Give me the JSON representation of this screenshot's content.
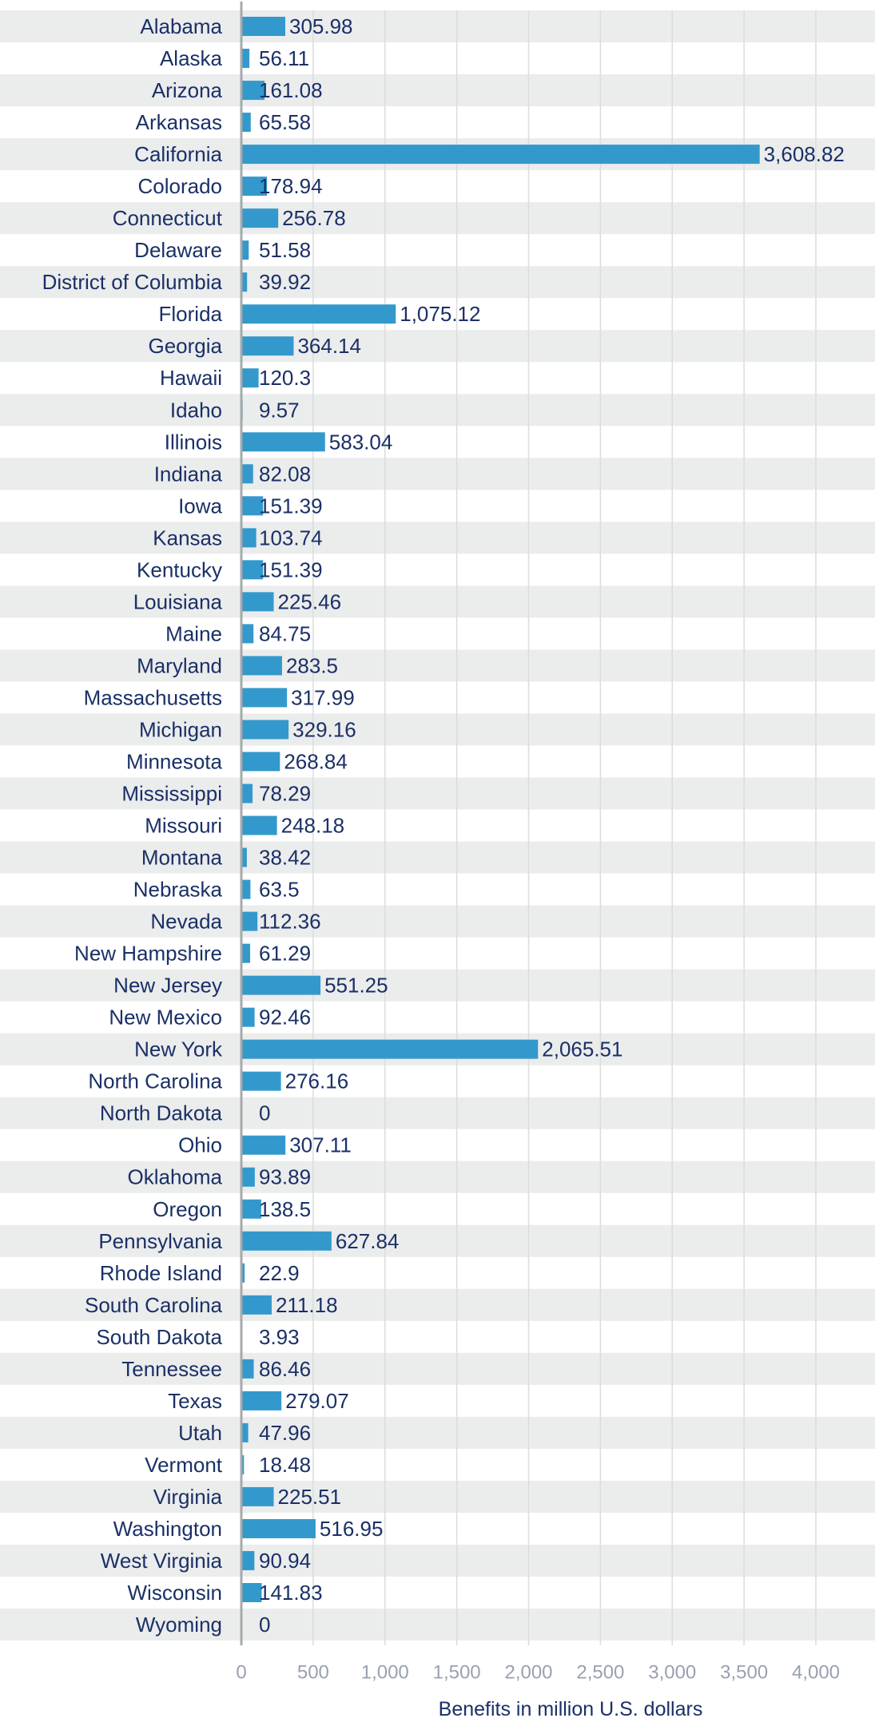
{
  "chart_data": {
    "type": "bar",
    "orientation": "horizontal",
    "categories": [
      "Alabama",
      "Alaska",
      "Arizona",
      "Arkansas",
      "California",
      "Colorado",
      "Connecticut",
      "Delaware",
      "District of Columbia",
      "Florida",
      "Georgia",
      "Hawaii",
      "Idaho",
      "Illinois",
      "Indiana",
      "Iowa",
      "Kansas",
      "Kentucky",
      "Louisiana",
      "Maine",
      "Maryland",
      "Massachusetts",
      "Michigan",
      "Minnesota",
      "Mississippi",
      "Missouri",
      "Montana",
      "Nebraska",
      "Nevada",
      "New Hampshire",
      "New Jersey",
      "New Mexico",
      "New York",
      "North Carolina",
      "North Dakota",
      "Ohio",
      "Oklahoma",
      "Oregon",
      "Pennsylvania",
      "Rhode Island",
      "South Carolina",
      "South Dakota",
      "Tennessee",
      "Texas",
      "Utah",
      "Vermont",
      "Virginia",
      "Washington",
      "West Virginia",
      "Wisconsin",
      "Wyoming"
    ],
    "values": [
      305.98,
      56.11,
      161.08,
      65.58,
      3608.82,
      178.94,
      256.78,
      51.58,
      39.92,
      1075.12,
      364.14,
      120.3,
      9.57,
      583.04,
      82.08,
      151.39,
      103.74,
      151.39,
      225.46,
      84.75,
      283.5,
      317.99,
      329.16,
      268.84,
      78.29,
      248.18,
      38.42,
      63.5,
      112.36,
      61.29,
      551.25,
      92.46,
      2065.51,
      276.16,
      0,
      307.11,
      93.89,
      138.5,
      627.84,
      22.9,
      211.18,
      3.93,
      86.46,
      279.07,
      47.96,
      18.48,
      225.51,
      516.95,
      90.94,
      141.83,
      0
    ],
    "value_labels": [
      "305.98",
      "56.11",
      "161.08",
      "65.58",
      "3,608.82",
      "178.94",
      "256.78",
      "51.58",
      "39.92",
      "1,075.12",
      "364.14",
      "120.3",
      "9.57",
      "583.04",
      "82.08",
      "151.39",
      "103.74",
      "151.39",
      "225.46",
      "84.75",
      "283.5",
      "317.99",
      "329.16",
      "268.84",
      "78.29",
      "248.18",
      "38.42",
      "63.5",
      "112.36",
      "61.29",
      "551.25",
      "92.46",
      "2,065.51",
      "276.16",
      "0",
      "307.11",
      "93.89",
      "138.5",
      "627.84",
      "22.9",
      "211.18",
      "3.93",
      "86.46",
      "279.07",
      "47.96",
      "18.48",
      "225.51",
      "516.95",
      "90.94",
      "141.83",
      "0"
    ],
    "xticks": [
      0,
      500,
      1000,
      1500,
      2000,
      2500,
      3000,
      3500,
      4000
    ],
    "xtick_labels": [
      "0",
      "500",
      "1,000",
      "1,500",
      "2,000",
      "2,500",
      "3,000",
      "3,500",
      "4,000"
    ],
    "xlim": [
      0,
      4000
    ],
    "xlabel": "Benefits in million U.S. dollars",
    "grid": true,
    "legend": false,
    "colors": {
      "bar": "#3399cc",
      "band": "#ebecec",
      "grid": "#dcdcdc",
      "axis": "#a7a9ac",
      "label": "#1a3067",
      "tick": "#9aa1ae"
    }
  }
}
